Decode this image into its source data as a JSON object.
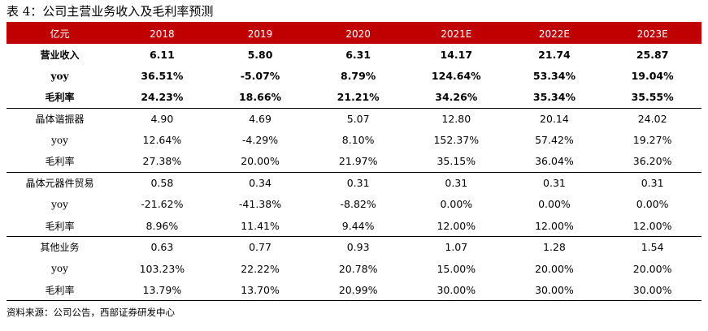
{
  "title": "表 4：公司主营业务收入及毛利率预测",
  "header": [
    "亿元",
    "2018",
    "2019",
    "2020",
    "2021E",
    "2022E",
    "2023E"
  ],
  "groups": [
    {
      "bold": true,
      "rows": [
        {
          "label": "营业收入",
          "values": [
            "6.11",
            "5.80",
            "6.31",
            "14.17",
            "21.74",
            "25.87"
          ]
        },
        {
          "label": "yoy",
          "values": [
            "36.51%",
            "-5.07%",
            "8.79%",
            "124.64%",
            "53.34%",
            "19.04%"
          ]
        },
        {
          "label": "毛利率",
          "values": [
            "24.23%",
            "18.66%",
            "21.21%",
            "34.26%",
            "35.34%",
            "35.55%"
          ]
        }
      ]
    },
    {
      "bold": false,
      "rows": [
        {
          "label": "晶体谐振器",
          "values": [
            "4.90",
            "4.69",
            "5.07",
            "12.80",
            "20.14",
            "24.02"
          ]
        },
        {
          "label": "yoy",
          "values": [
            "12.64%",
            "-4.29%",
            "8.10%",
            "152.37%",
            "57.42%",
            "19.27%"
          ]
        },
        {
          "label": "毛利率",
          "values": [
            "27.38%",
            "20.00%",
            "21.97%",
            "35.15%",
            "36.04%",
            "36.20%"
          ]
        }
      ]
    },
    {
      "bold": false,
      "rows": [
        {
          "label": "晶体元器件贸易",
          "values": [
            "0.58",
            "0.34",
            "0.31",
            "0.31",
            "0.31",
            "0.31"
          ]
        },
        {
          "label": "yoy",
          "values": [
            "-21.62%",
            "-41.38%",
            "-8.82%",
            "0.00%",
            "0.00%",
            "0.00%"
          ]
        },
        {
          "label": "毛利率",
          "values": [
            "8.96%",
            "11.41%",
            "9.44%",
            "12.00%",
            "12.00%",
            "12.00%"
          ]
        }
      ]
    },
    {
      "bold": false,
      "rows": [
        {
          "label": "其他业务",
          "values": [
            "0.63",
            "0.77",
            "0.93",
            "1.07",
            "1.28",
            "1.54"
          ]
        },
        {
          "label": "yoy",
          "values": [
            "103.23%",
            "22.22%",
            "20.78%",
            "15.00%",
            "20.00%",
            "20.00%"
          ]
        },
        {
          "label": "毛利率",
          "values": [
            "13.79%",
            "13.70%",
            "20.99%",
            "30.00%",
            "30.00%",
            "30.00%"
          ]
        }
      ]
    }
  ],
  "source": "资料来源：公司公告，西部证券研发中心",
  "colors": {
    "accent": "#c00000"
  }
}
